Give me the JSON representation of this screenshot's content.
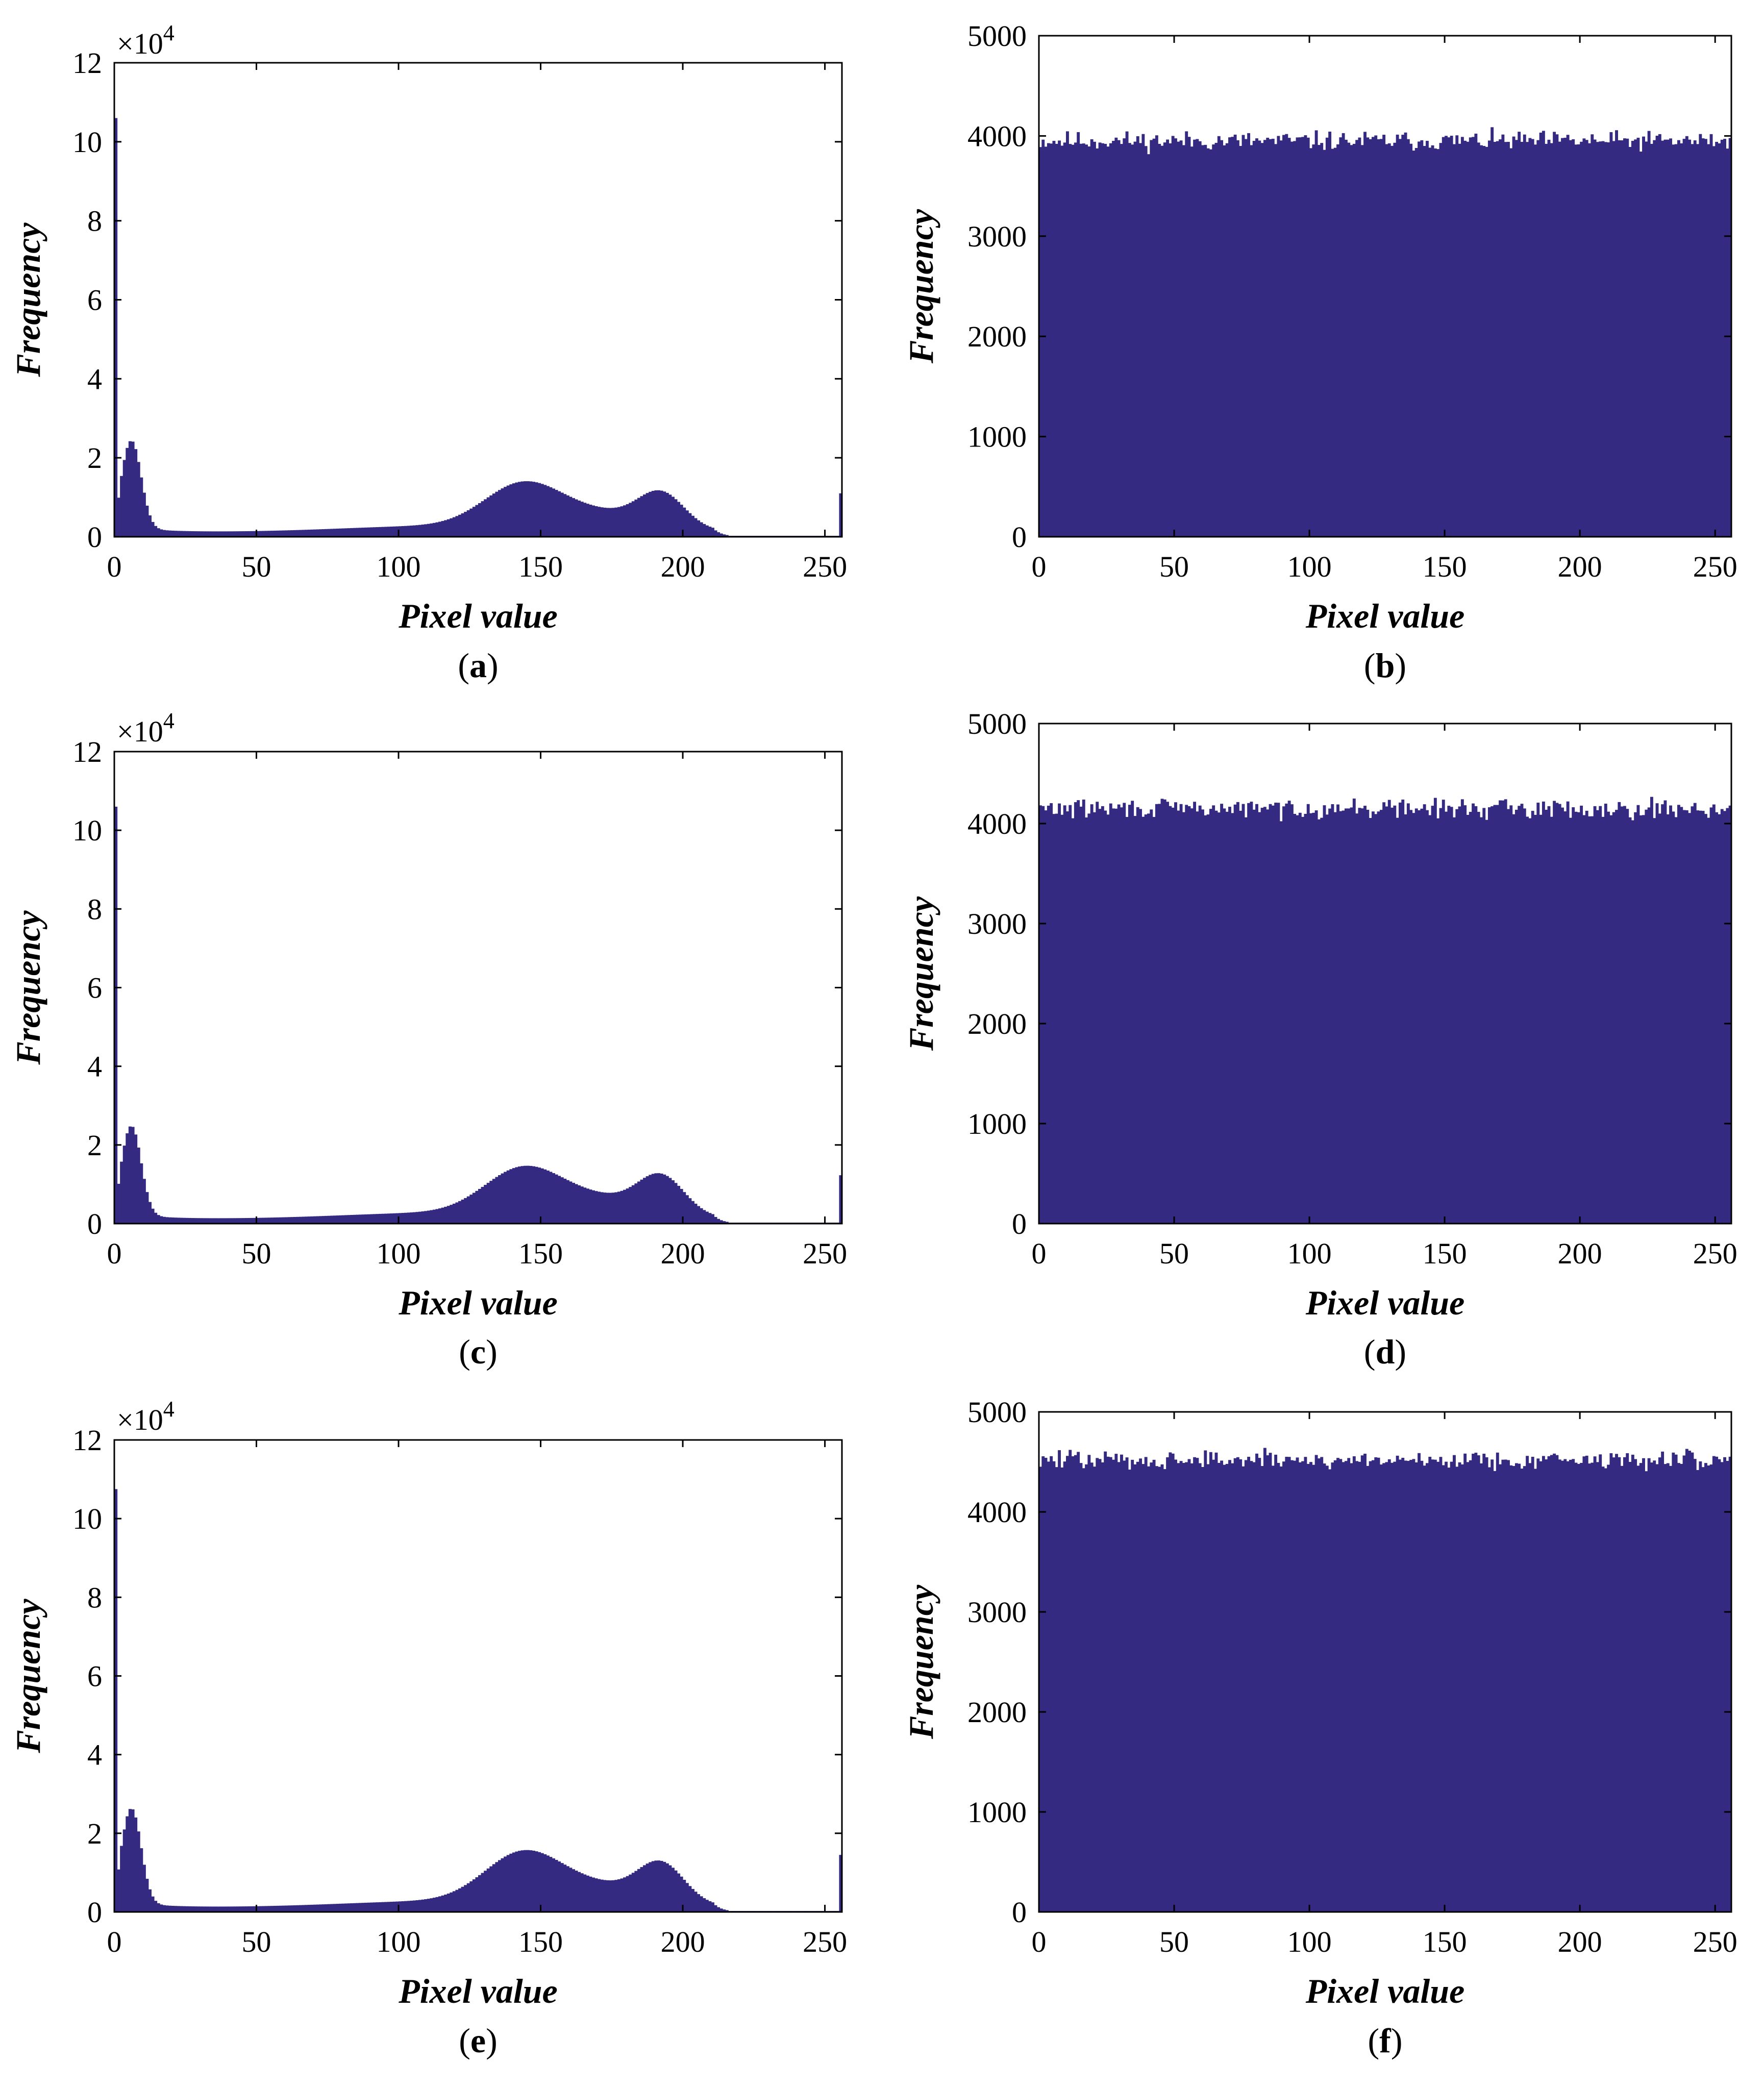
{
  "figure": {
    "panels": [
      {
        "id": "a",
        "caption_open": "(",
        "caption_letter": "a",
        "caption_close": ")",
        "exponent_base": "×10",
        "exponent_power": "4"
      },
      {
        "id": "b",
        "caption_open": "(",
        "caption_letter": "b",
        "caption_close": ")"
      },
      {
        "id": "c",
        "caption_open": "(",
        "caption_letter": "c",
        "caption_close": ")",
        "exponent_base": "×10",
        "exponent_power": "4"
      },
      {
        "id": "d",
        "caption_open": "(",
        "caption_letter": "d",
        "caption_close": ")"
      },
      {
        "id": "e",
        "caption_open": "(",
        "caption_letter": "e",
        "caption_close": ")",
        "exponent_base": "×10",
        "exponent_power": "4"
      },
      {
        "id": "f",
        "caption_open": "(",
        "caption_letter": "f",
        "caption_close": ")"
      }
    ]
  },
  "colors": {
    "bar": "#352a82",
    "axis": "#000000",
    "background": "#ffffff"
  },
  "chart_data": [
    {
      "panel": "a",
      "type": "bar",
      "title": "",
      "xlabel": "Pixel value",
      "ylabel": "Frequency",
      "xlim": [
        0,
        256
      ],
      "ylim": [
        0,
        120000
      ],
      "xticks": [
        0,
        50,
        100,
        150,
        200,
        250
      ],
      "xtick_labels": [
        "0",
        "50",
        "100",
        "150",
        "200",
        "250"
      ],
      "yticks": [
        0,
        20000,
        40000,
        60000,
        80000,
        100000,
        120000
      ],
      "ytick_labels": [
        "0",
        "2",
        "4",
        "6",
        "8",
        "10",
        "12"
      ],
      "y_scale_label": "×10^4",
      "profile": {
        "kind": "plain-image",
        "first_bin": 106000,
        "peak_low": 22000,
        "peak_mid": 10500,
        "peak_high": 8000,
        "last_bin": 11000
      }
    },
    {
      "panel": "b",
      "type": "bar",
      "title": "",
      "xlabel": "Pixel value",
      "ylabel": "Frequency",
      "xlim": [
        0,
        256
      ],
      "ylim": [
        0,
        5000
      ],
      "xticks": [
        0,
        50,
        100,
        150,
        200,
        250
      ],
      "xtick_labels": [
        "0",
        "50",
        "100",
        "150",
        "200",
        "250"
      ],
      "yticks": [
        0,
        1000,
        2000,
        3000,
        4000,
        5000
      ],
      "ytick_labels": [
        "0",
        "1000",
        "2000",
        "3000",
        "4000",
        "5000"
      ],
      "profile": {
        "kind": "uniform",
        "mean": 3950,
        "spread": 60,
        "seed": 11
      }
    },
    {
      "panel": "c",
      "type": "bar",
      "title": "",
      "xlabel": "Pixel value",
      "ylabel": "Frequency",
      "xlim": [
        0,
        256
      ],
      "ylim": [
        0,
        120000
      ],
      "xticks": [
        0,
        50,
        100,
        150,
        200,
        250
      ],
      "xtick_labels": [
        "0",
        "50",
        "100",
        "150",
        "200",
        "250"
      ],
      "yticks": [
        0,
        20000,
        40000,
        60000,
        80000,
        100000,
        120000
      ],
      "ytick_labels": [
        "0",
        "2",
        "4",
        "6",
        "8",
        "10",
        "12"
      ],
      "y_scale_label": "×10^4",
      "profile": {
        "kind": "plain-image",
        "first_bin": 106000,
        "peak_low": 22500,
        "peak_mid": 11000,
        "peak_high": 8800,
        "last_bin": 12300
      }
    },
    {
      "panel": "d",
      "type": "bar",
      "title": "",
      "xlabel": "Pixel value",
      "ylabel": "Frequency",
      "xlim": [
        0,
        256
      ],
      "ylim": [
        0,
        5000
      ],
      "xticks": [
        0,
        50,
        100,
        150,
        200,
        250
      ],
      "xtick_labels": [
        "0",
        "50",
        "100",
        "150",
        "200",
        "250"
      ],
      "yticks": [
        0,
        1000,
        2000,
        3000,
        4000,
        5000
      ],
      "ytick_labels": [
        "0",
        "1000",
        "2000",
        "3000",
        "4000",
        "5000"
      ],
      "profile": {
        "kind": "uniform",
        "mean": 4150,
        "spread": 60,
        "seed": 29
      }
    },
    {
      "panel": "e",
      "type": "bar",
      "title": "",
      "xlabel": "Pixel value",
      "ylabel": "Frequency",
      "xlim": [
        0,
        256
      ],
      "ylim": [
        0,
        120000
      ],
      "xticks": [
        0,
        50,
        100,
        150,
        200,
        250
      ],
      "xtick_labels": [
        "0",
        "50",
        "100",
        "150",
        "200",
        "250"
      ],
      "yticks": [
        0,
        20000,
        40000,
        60000,
        80000,
        100000,
        120000
      ],
      "ytick_labels": [
        "0",
        "2",
        "4",
        "6",
        "8",
        "10",
        "12"
      ],
      "y_scale_label": "×10^4",
      "profile": {
        "kind": "plain-image",
        "first_bin": 107500,
        "peak_low": 24000,
        "peak_mid": 12000,
        "peak_high": 9000,
        "last_bin": 14500
      }
    },
    {
      "panel": "f",
      "type": "bar",
      "title": "",
      "xlabel": "Pixel value",
      "ylabel": "Frequency",
      "xlim": [
        0,
        256
      ],
      "ylim": [
        0,
        5000
      ],
      "xticks": [
        0,
        50,
        100,
        150,
        200,
        250
      ],
      "xtick_labels": [
        "0",
        "50",
        "100",
        "150",
        "200",
        "250"
      ],
      "yticks": [
        0,
        1000,
        2000,
        3000,
        4000,
        5000
      ],
      "ytick_labels": [
        "0",
        "1000",
        "2000",
        "3000",
        "4000",
        "5000"
      ],
      "profile": {
        "kind": "uniform",
        "mean": 4520,
        "spread": 60,
        "seed": 47
      }
    }
  ]
}
